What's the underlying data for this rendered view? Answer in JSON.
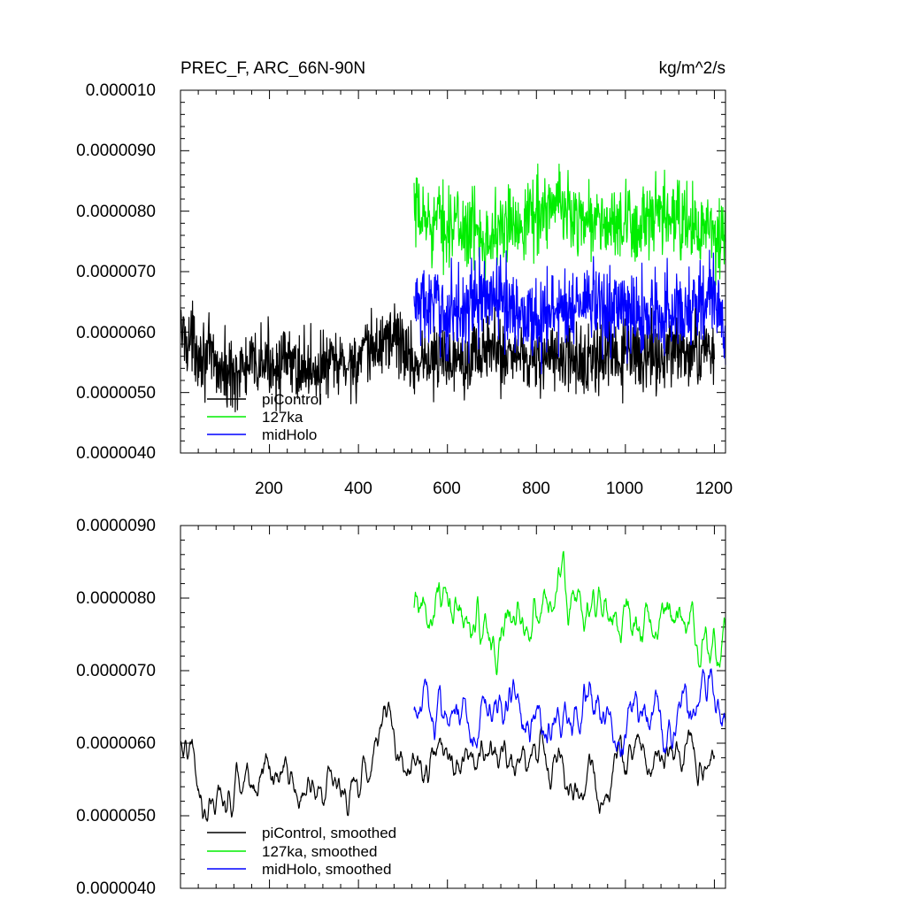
{
  "chart_data": [
    {
      "type": "line",
      "title": "PREC_F, ARC_66N-90N",
      "units": "kg/m^2/s",
      "xlim": [
        0,
        1225
      ],
      "ylim": [
        4e-06,
        1e-05
      ],
      "xticks": [
        200,
        400,
        600,
        800,
        1000,
        1200
      ],
      "xtick_labels": [
        "200",
        "400",
        "600",
        "800",
        "1000",
        "1200"
      ],
      "yticks": [
        4e-06,
        5e-06,
        6e-06,
        7e-06,
        8e-06,
        9e-06,
        1e-05
      ],
      "ytick_labels": [
        "0.0000040",
        "0.0000050",
        "0.0000060",
        "0.0000070",
        "0.0000080",
        "0.0000090",
        "0.000010"
      ],
      "legend_placement": "lower-left",
      "series": [
        {
          "name": "piControl",
          "color": "#000000",
          "x_range": [
            1,
            1200
          ],
          "mean": 5.5e-06,
          "amp": 5.5e-07,
          "anchors": [
            [
              1,
              6e-06
            ],
            [
              100,
              5.3e-06
            ],
            [
              200,
              5.5e-06
            ],
            [
              300,
              5.4e-06
            ],
            [
              400,
              5.5e-06
            ],
            [
              480,
              6e-06
            ],
            [
              520,
              5.5e-06
            ],
            [
              700,
              5.7e-06
            ],
            [
              900,
              5.5e-06
            ],
            [
              1000,
              5.6e-06
            ],
            [
              1200,
              5.7e-06
            ]
          ]
        },
        {
          "name": "127ka",
          "color": "#00ee00",
          "x_range": [
            525,
            1225
          ],
          "mean": 7.8e-06,
          "amp": 6e-07,
          "anchors": [
            [
              525,
              7.9e-06
            ],
            [
              600,
              7.8e-06
            ],
            [
              700,
              7.6e-06
            ],
            [
              800,
              8e-06
            ],
            [
              850,
              8.1e-06
            ],
            [
              900,
              7.9e-06
            ],
            [
              1000,
              7.7e-06
            ],
            [
              1100,
              7.9e-06
            ],
            [
              1225,
              7.5e-06
            ]
          ]
        },
        {
          "name": "midHolo",
          "color": "#0000ff",
          "x_range": [
            525,
            1225
          ],
          "mean": 6.3e-06,
          "amp": 6.5e-07,
          "anchors": [
            [
              525,
              6.5e-06
            ],
            [
              600,
              6.3e-06
            ],
            [
              700,
              6.6e-06
            ],
            [
              800,
              6.2e-06
            ],
            [
              900,
              6.5e-06
            ],
            [
              1000,
              6.3e-06
            ],
            [
              1100,
              6.3e-06
            ],
            [
              1200,
              6.6e-06
            ],
            [
              1225,
              5.8e-06
            ]
          ]
        }
      ]
    },
    {
      "type": "line",
      "xlim": [
        0,
        1225
      ],
      "ylim": [
        4e-06,
        9e-06
      ],
      "xticks": [
        200,
        400,
        600,
        800,
        1000,
        1200
      ],
      "yticks": [
        4e-06,
        5e-06,
        6e-06,
        7e-06,
        8e-06,
        9e-06
      ],
      "ytick_labels": [
        "0.0000040",
        "0.0000050",
        "0.0000060",
        "0.0000070",
        "0.0000080",
        "0.0000090"
      ],
      "legend_placement": "lower-left",
      "series": [
        {
          "name": "piControl, smoothed",
          "color": "#000000",
          "x_range": [
            1,
            1200
          ],
          "mean": 5.5e-06,
          "amp": 2.8e-07,
          "anchors": [
            [
              1,
              6e-06
            ],
            [
              50,
              5.3e-06
            ],
            [
              100,
              5.2e-06
            ],
            [
              200,
              5.5e-06
            ],
            [
              300,
              5.4e-06
            ],
            [
              400,
              5.5e-06
            ],
            [
              460,
              6.3e-06
            ],
            [
              520,
              5.6e-06
            ],
            [
              600,
              5.8e-06
            ],
            [
              700,
              5.7e-06
            ],
            [
              800,
              5.8e-06
            ],
            [
              900,
              5.3e-06
            ],
            [
              1000,
              5.8e-06
            ],
            [
              1100,
              5.8e-06
            ],
            [
              1200,
              6e-06
            ]
          ]
        },
        {
          "name": "127ka, smoothed",
          "color": "#00ee00",
          "x_range": [
            525,
            1225
          ],
          "mean": 7.7e-06,
          "amp": 3.5e-07,
          "anchors": [
            [
              525,
              7.8e-06
            ],
            [
              600,
              7.7e-06
            ],
            [
              700,
              7.5e-06
            ],
            [
              800,
              8e-06
            ],
            [
              850,
              8.1e-06
            ],
            [
              900,
              7.8e-06
            ],
            [
              1000,
              7.7e-06
            ],
            [
              1100,
              7.8e-06
            ],
            [
              1200,
              7.4e-06
            ],
            [
              1225,
              7.4e-06
            ]
          ]
        },
        {
          "name": "midHolo, smoothed",
          "color": "#0000ff",
          "x_range": [
            525,
            1225
          ],
          "mean": 6.3e-06,
          "amp": 3.5e-07,
          "anchors": [
            [
              525,
              6.5e-06
            ],
            [
              600,
              6.3e-06
            ],
            [
              700,
              6.6e-06
            ],
            [
              800,
              6.2e-06
            ],
            [
              900,
              6.6e-06
            ],
            [
              1000,
              6.3e-06
            ],
            [
              1100,
              6.3e-06
            ],
            [
              1200,
              6.8e-06
            ],
            [
              1225,
              6.1e-06
            ]
          ]
        }
      ]
    }
  ]
}
